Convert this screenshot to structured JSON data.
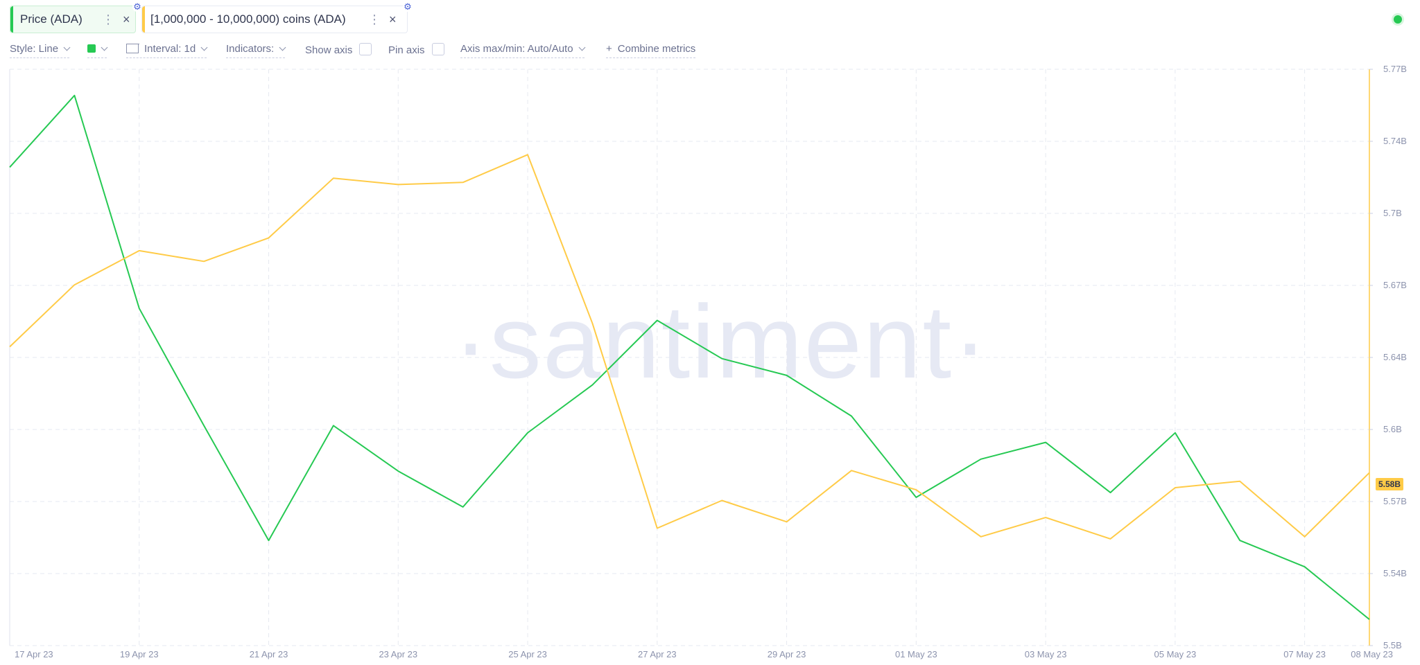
{
  "tabs": [
    {
      "label": "Price (ADA)",
      "color": "#26c953"
    },
    {
      "label": "[1,000,000 - 10,000,000) coins (ADA)",
      "color": "#ffcb47"
    }
  ],
  "icons": {
    "more": "⋮",
    "close": "×",
    "settings": "⚙",
    "add": "+"
  },
  "toolbar": {
    "style": "Style: Line",
    "interval": "Interval: 1d",
    "indicators": "Indicators:",
    "show_axis": "Show axis",
    "pin_axis": "Pin axis",
    "axis_minmax": "Axis max/min: Auto/Auto",
    "combine": "Combine metrics"
  },
  "watermark": "·santiment·",
  "current_value_badge": "5.58B",
  "chart_data": {
    "type": "line",
    "x": [
      "17 Apr 23",
      "18 Apr 23",
      "19 Apr 23",
      "20 Apr 23",
      "21 Apr 23",
      "22 Apr 23",
      "23 Apr 23",
      "24 Apr 23",
      "25 Apr 23",
      "26 Apr 23",
      "27 Apr 23",
      "28 Apr 23",
      "29 Apr 23",
      "30 Apr 23",
      "01 May 23",
      "02 May 23",
      "03 May 23",
      "04 May 23",
      "05 May 23",
      "06 May 23",
      "07 May 23",
      "08 May 23"
    ],
    "x_tick_labels": [
      "17 Apr 23",
      "19 Apr 23",
      "21 Apr 23",
      "23 Apr 23",
      "25 Apr 23",
      "27 Apr 23",
      "29 Apr 23",
      "01 May 23",
      "03 May 23",
      "05 May 23",
      "07 May 23",
      "08 May 23"
    ],
    "series": [
      {
        "name": "Price (ADA)",
        "color": "#26c953",
        "axis": "hidden",
        "values": [
          0.845,
          0.875,
          0.786,
          0.737,
          0.689,
          0.737,
          0.718,
          0.703,
          0.734,
          0.754,
          0.781,
          0.765,
          0.758,
          0.741,
          0.707,
          0.723,
          0.73,
          0.709,
          0.734,
          0.689,
          0.678,
          0.656
        ]
      },
      {
        "name": "[1,000,000 - 10,000,000) coins (ADA)",
        "color": "#ffcb47",
        "axis": "right",
        "values": [
          5.64,
          5.669,
          5.685,
          5.68,
          5.691,
          5.719,
          5.716,
          5.717,
          5.73,
          5.651,
          5.555,
          5.568,
          5.558,
          5.582,
          5.573,
          5.551,
          5.56,
          5.55,
          5.574,
          5.577,
          5.551,
          5.581
        ]
      }
    ],
    "y_right": {
      "ticks": [
        "5.77B",
        "5.74B",
        "5.7B",
        "5.67B",
        "5.64B",
        "5.6B",
        "5.57B",
        "5.54B",
        "5.5B"
      ],
      "ylim": [
        5.5,
        5.77
      ]
    },
    "grid": true
  }
}
